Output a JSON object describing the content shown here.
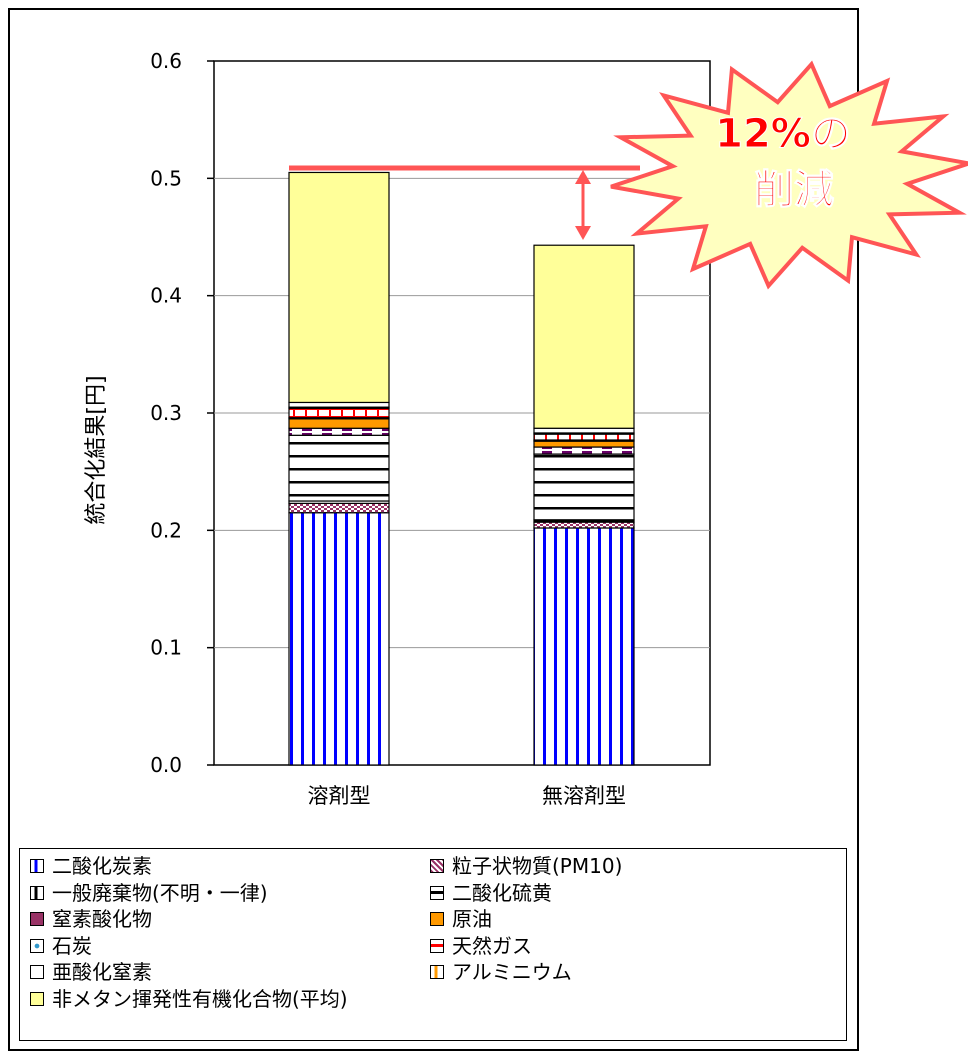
{
  "chart_data": {
    "type": "bar",
    "stacked": true,
    "ylabel": "統合化結果[円]",
    "xlabel": "",
    "ylim": [
      0,
      0.6
    ],
    "yticks": [
      "0.0",
      "0.1",
      "0.2",
      "0.3",
      "0.4",
      "0.5",
      "0.6"
    ],
    "categories": [
      "溶剤型",
      "無溶剤型"
    ],
    "grid": true,
    "legend_position": "bottom",
    "series": [
      {
        "name": "二酸化炭素",
        "values": [
          0.215,
          0.202
        ],
        "color": "#0000ff",
        "pattern": "vertical-lines"
      },
      {
        "name": "粒子状物質(PM10)",
        "values": [
          0.008,
          0.005
        ],
        "color": "#993366",
        "pattern": "checker"
      },
      {
        "name": "一般廃棄物(不明・一律)",
        "values": [
          0.002,
          0.002
        ],
        "color": "#000000",
        "pattern": "horizontal-lines"
      },
      {
        "name": "二酸化硫黄",
        "values": [
          0.056,
          0.056
        ],
        "color": "#000000",
        "pattern": "horizontal-lines"
      },
      {
        "name": "窒素酸化物",
        "values": [
          0.006,
          0.006
        ],
        "color": "#993366",
        "pattern": "dashes"
      },
      {
        "name": "原油",
        "values": [
          0.008,
          0.005
        ],
        "color": "#ff9900",
        "pattern": "solid"
      },
      {
        "name": "石炭",
        "values": [
          0.001,
          0.001
        ],
        "color": "#000000",
        "pattern": "dots"
      },
      {
        "name": "天然ガス",
        "values": [
          0.008,
          0.005
        ],
        "color": "#ff0000",
        "pattern": "dashes"
      },
      {
        "name": "亜酸化窒素",
        "values": [
          0.001,
          0.001
        ],
        "color": "#000000",
        "pattern": "none"
      },
      {
        "name": "アルミニウム",
        "values": [
          0.004,
          0.004
        ],
        "color": "#ff9900",
        "pattern": "none"
      },
      {
        "name": "非メタン揮発性有機化合物(平均)",
        "values": [
          0.196,
          0.156
        ],
        "color": "#ffff99",
        "pattern": "solid"
      }
    ],
    "totals": [
      0.505,
      0.443
    ],
    "annotation": {
      "line1": "12%の",
      "line2": "削減"
    },
    "annotation_fill": "#ffffc0",
    "annotation_stroke": "#ff5555",
    "annotation_text_color": "#ff0000"
  },
  "legend": {
    "items": [
      {
        "label": "二酸化炭素",
        "swatch_color": "#0000ff",
        "swatch_style": "bar-left"
      },
      {
        "label": "粒子状物質(PM10)",
        "swatch_color": "#993366",
        "swatch_style": "checker"
      },
      {
        "label": "一般廃棄物(不明・一律)",
        "swatch_color": "#000000",
        "swatch_style": "bar-left"
      },
      {
        "label": "二酸化硫黄",
        "swatch_color": "#000000",
        "swatch_style": "mid-line"
      },
      {
        "label": "窒素酸化物",
        "swatch_color": "#993366",
        "swatch_style": "fill"
      },
      {
        "label": "原油",
        "swatch_color": "#ff9900",
        "swatch_style": "fill"
      },
      {
        "label": "石炭",
        "swatch_color": "#3399cc",
        "swatch_style": "dot"
      },
      {
        "label": "天然ガス",
        "swatch_color": "#ff0000",
        "swatch_style": "mid-line"
      },
      {
        "label": "亜酸化窒素",
        "swatch_color": "#ffffff",
        "swatch_style": "empty"
      },
      {
        "label": "アルミニウム",
        "swatch_color": "#ff9900",
        "swatch_style": "bar-left"
      },
      {
        "label": "非メタン揮発性有機化合物(平均)",
        "swatch_color": "#ffff99",
        "swatch_style": "fill"
      }
    ]
  }
}
